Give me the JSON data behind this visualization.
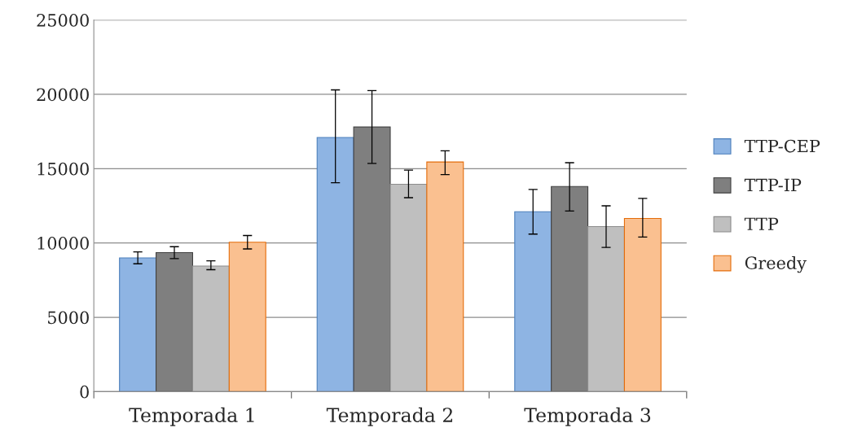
{
  "chart_data": {
    "type": "bar",
    "categories": [
      "Temporada 1",
      "Temporada 2",
      "Temporada 3"
    ],
    "series": [
      {
        "name": "TTP-CEP",
        "color": "#8eb4e3",
        "values": [
          9000,
          17100,
          12100
        ],
        "errors": [
          [
            8600,
            9400
          ],
          [
            14050,
            20300
          ],
          [
            10600,
            13600
          ]
        ]
      },
      {
        "name": "TTP-IP",
        "color": "#7f7f7f",
        "values": [
          9350,
          17800,
          13800
        ],
        "errors": [
          [
            8950,
            9750
          ],
          [
            15350,
            20250
          ],
          [
            12150,
            15400
          ]
        ]
      },
      {
        "name": "TTP",
        "color": "#bfbfbf",
        "values": [
          8450,
          13950,
          11100
        ],
        "errors": [
          [
            8200,
            8800
          ],
          [
            13050,
            14900
          ],
          [
            9700,
            12500
          ]
        ]
      },
      {
        "name": "Greedy",
        "color": "#fac090",
        "values": [
          10050,
          15450,
          11650
        ],
        "errors": [
          [
            9600,
            10500
          ],
          [
            14600,
            16200
          ],
          [
            10400,
            13000
          ]
        ]
      }
    ],
    "ylim": [
      0,
      25000
    ],
    "yticks": [
      0,
      5000,
      10000,
      15000,
      20000,
      25000
    ],
    "grid": "y",
    "legend": "right"
  }
}
